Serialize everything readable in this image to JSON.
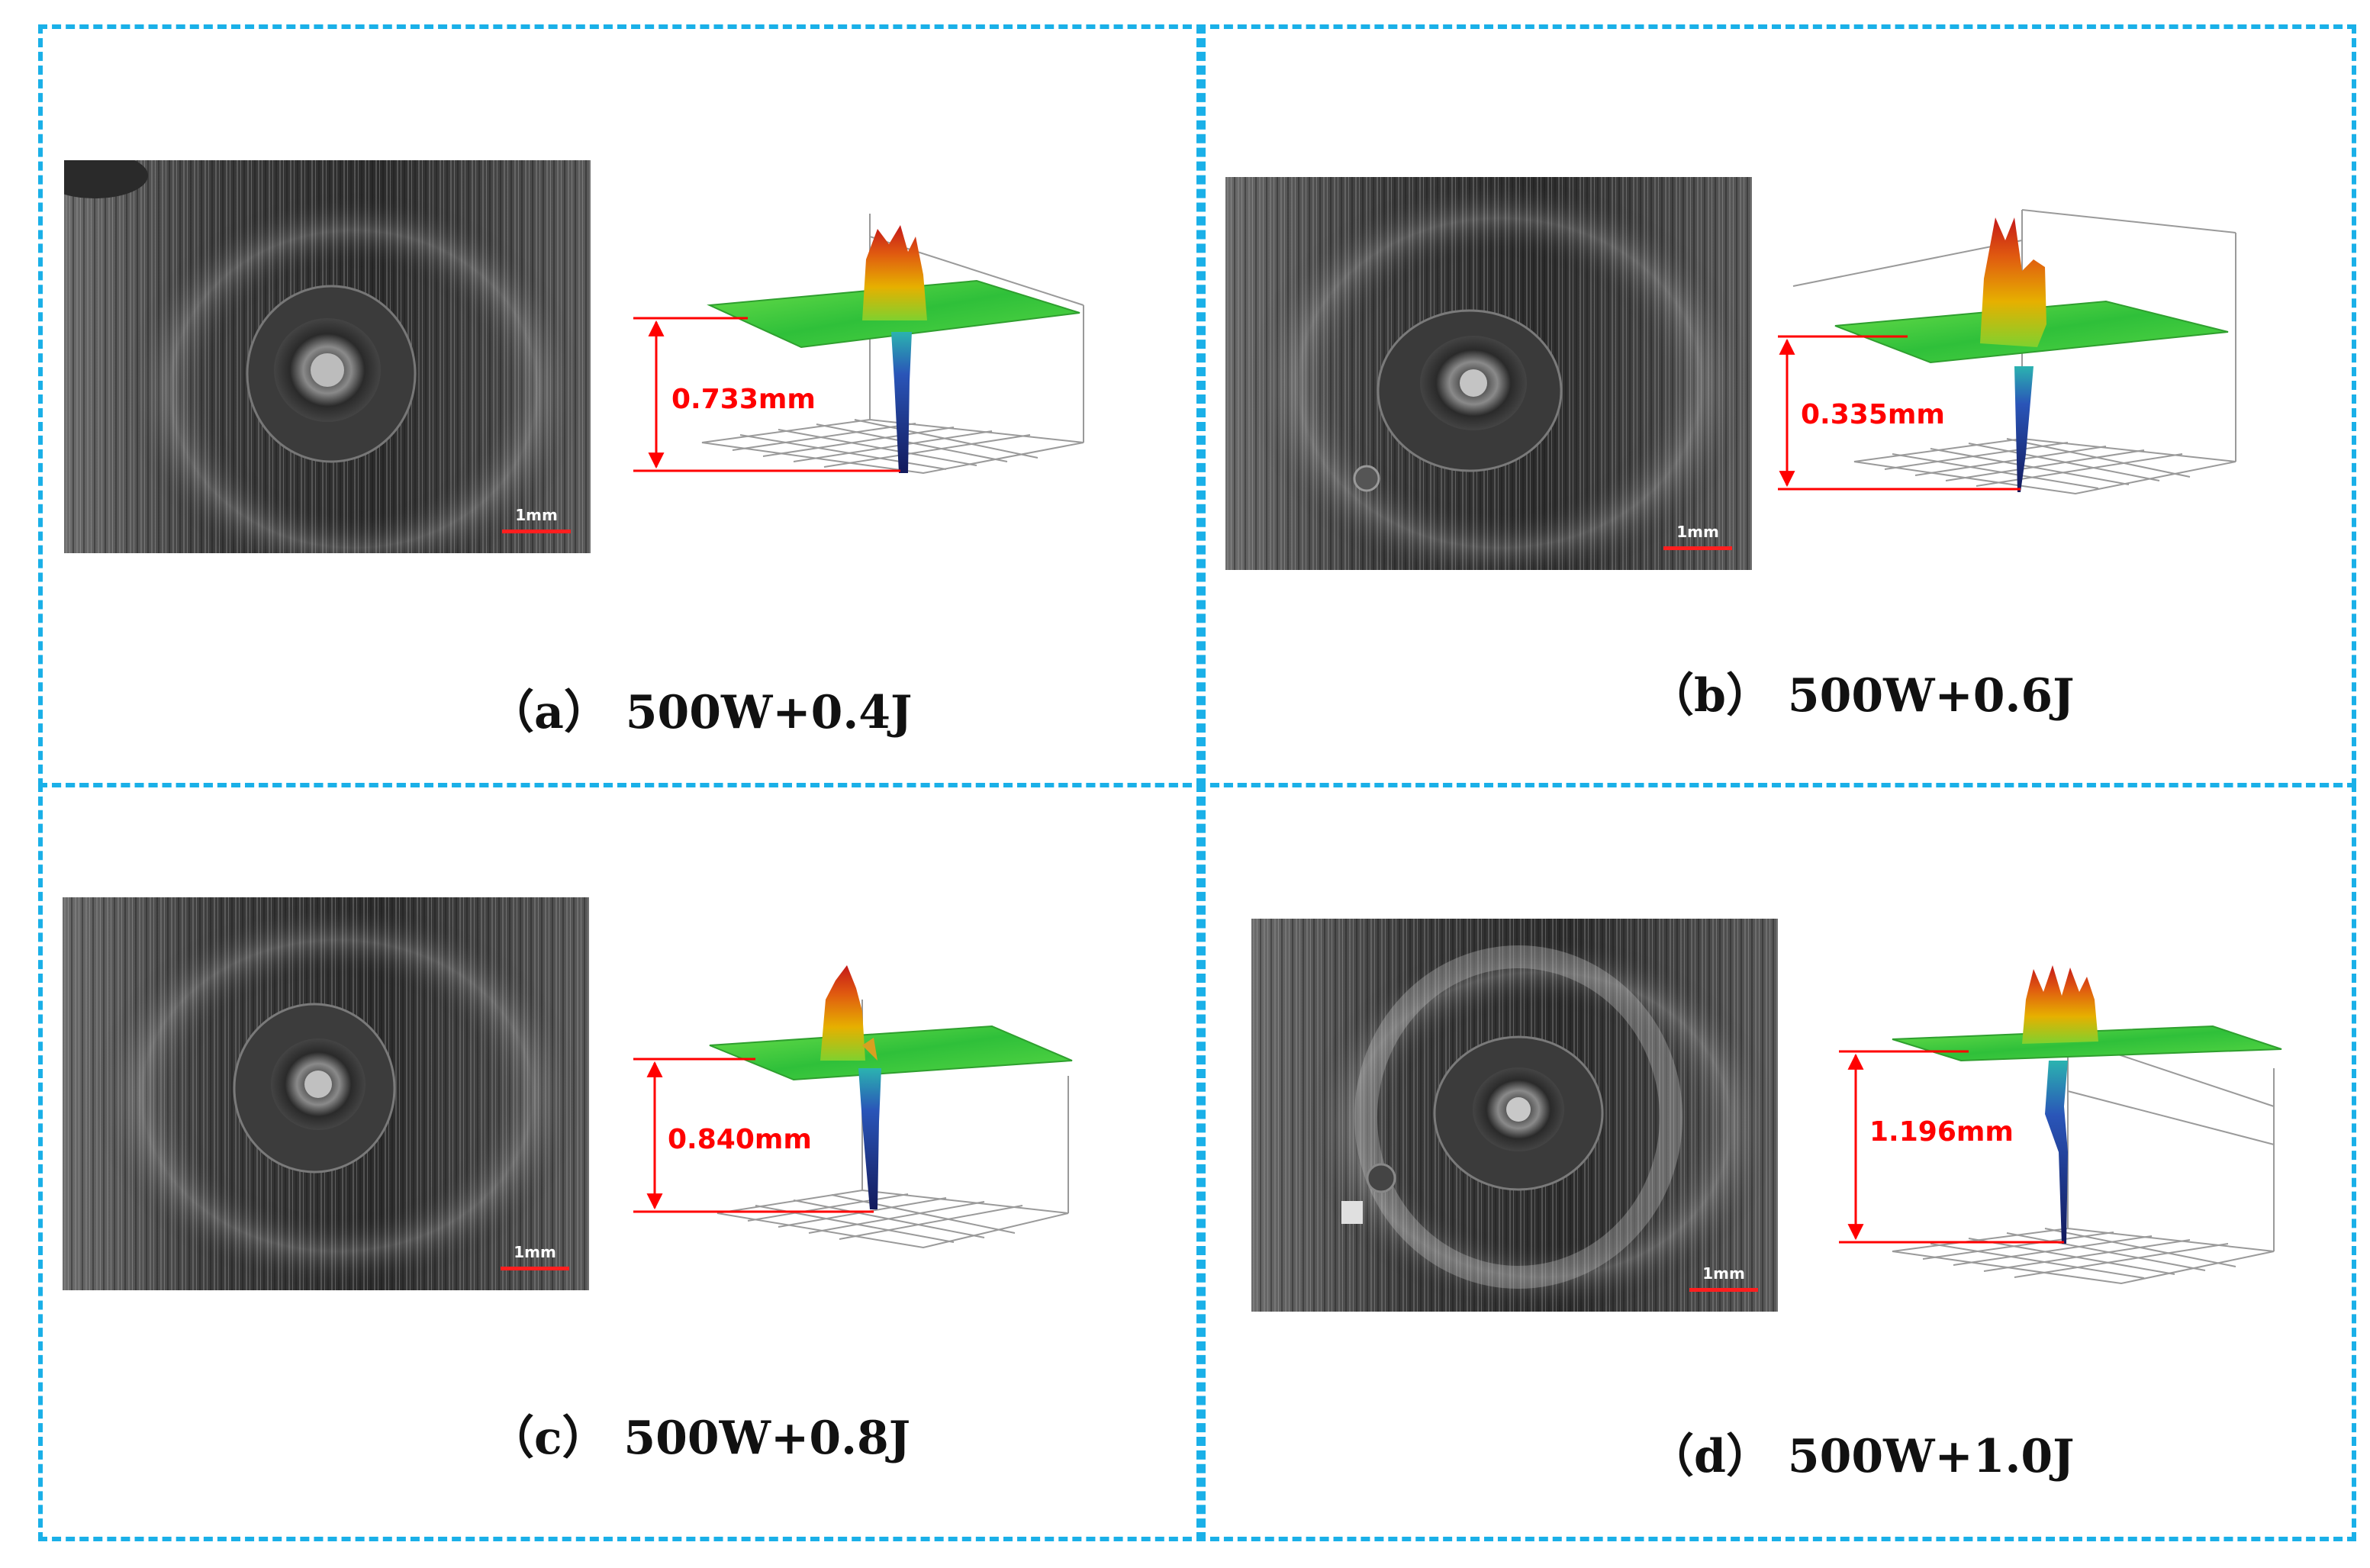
{
  "panels": [
    {
      "caption": "（a） 500W+0.4J",
      "depth": "0.733mm",
      "scale": "1mm"
    },
    {
      "caption": "（b） 500W+0.6J",
      "depth": "0.335mm",
      "scale": "1mm"
    },
    {
      "caption": "（c） 500W+0.8J",
      "depth": "0.840mm",
      "scale": "1mm"
    },
    {
      "caption": "（d） 500W+1.0J",
      "depth": "1.196mm",
      "scale": "1mm"
    }
  ],
  "colors": {
    "frame": "#1ab0e8",
    "depth_marker": "#ff0000",
    "surface_green": "#3fd13a",
    "peak_red": "#d8281a",
    "hole_blue": "#1c2f8c"
  }
}
